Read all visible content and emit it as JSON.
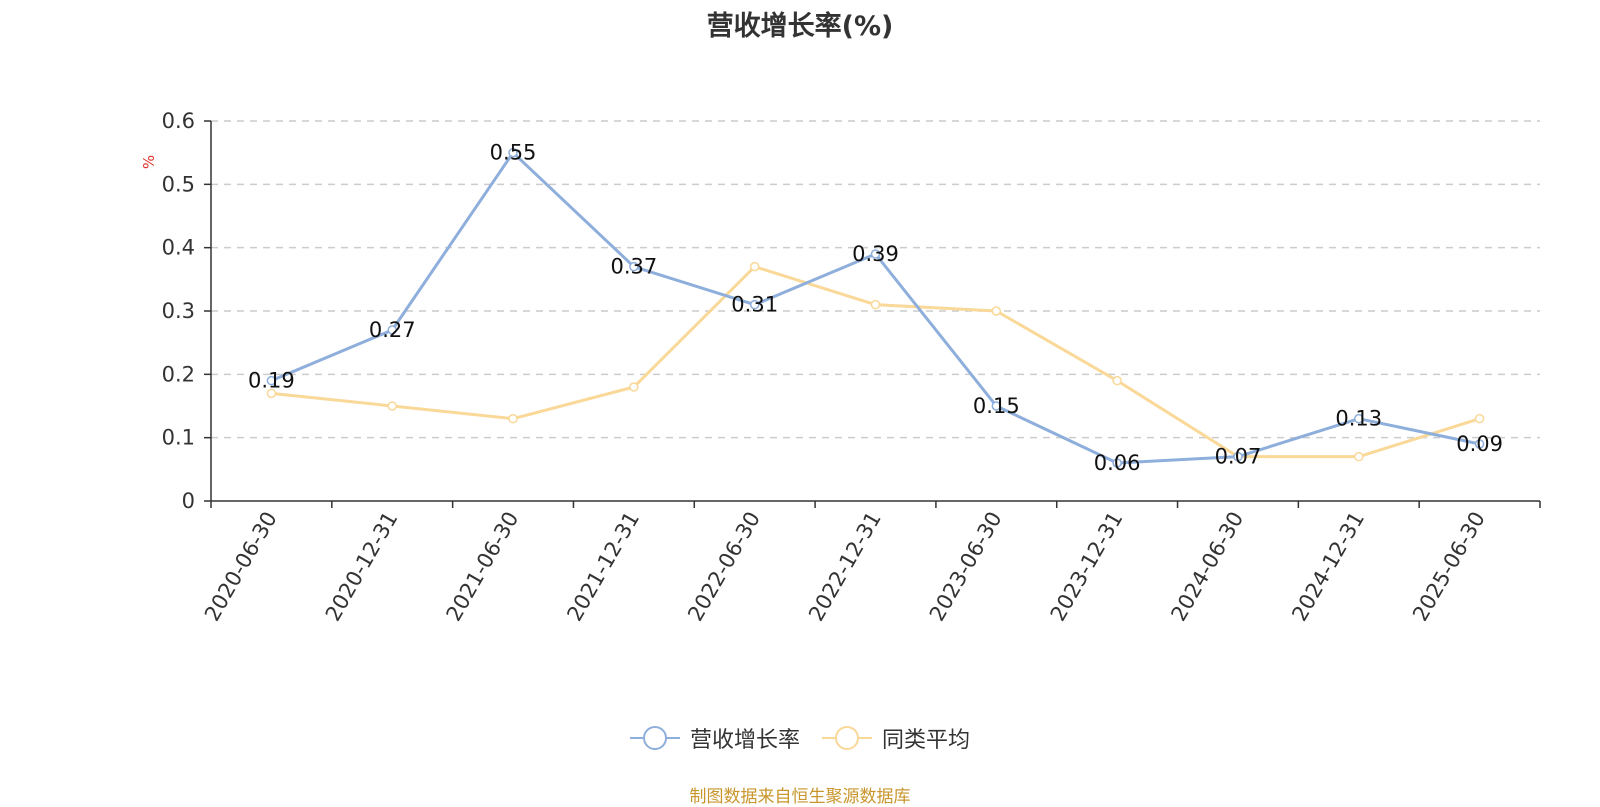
{
  "title": "营收增长率(%)",
  "source_note": "制图数据来自恒生聚源数据库",
  "chart_data": {
    "type": "line",
    "title": "营收增长率(%)",
    "ylabel": "%",
    "ylabel_color": "#e0322b",
    "categories": [
      "2020-06-30",
      "2020-12-31",
      "2021-06-30",
      "2021-12-31",
      "2022-06-30",
      "2022-12-31",
      "2023-06-30",
      "2023-12-31",
      "2024-06-30",
      "2024-12-31",
      "2025-06-30"
    ],
    "ylim": [
      0,
      0.6
    ],
    "yticks": [
      "0",
      "0.1",
      "0.2",
      "0.3",
      "0.4",
      "0.5",
      "0.6"
    ],
    "grid": "dashed-horizontal",
    "legend_position": "bottom-center",
    "series": [
      {
        "name": "营收增长率",
        "color": "#8eaedb",
        "values": [
          0.19,
          0.27,
          0.55,
          0.37,
          0.31,
          0.39,
          0.15,
          0.06,
          0.07,
          0.13,
          0.09
        ],
        "labels": [
          "0.19",
          "0.27",
          "0.55",
          "0.37",
          "0.31",
          "0.39",
          "0.15",
          "0.06",
          "0.07",
          "0.13",
          "0.09"
        ]
      },
      {
        "name": "同类平均",
        "color": "#f9d898",
        "values": [
          0.17,
          0.15,
          0.13,
          0.18,
          0.37,
          0.31,
          0.3,
          0.19,
          0.07,
          0.07,
          0.13
        ]
      }
    ]
  }
}
